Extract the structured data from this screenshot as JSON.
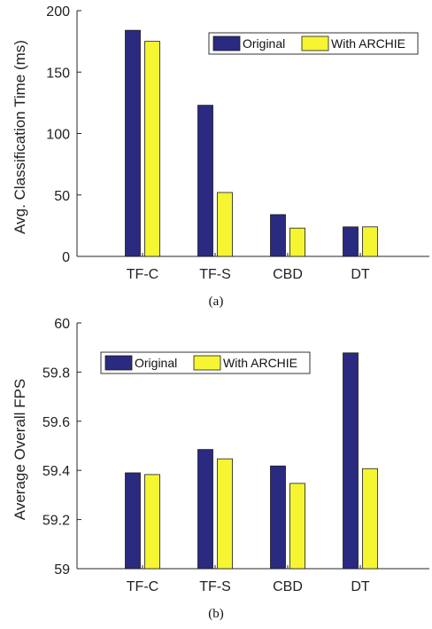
{
  "captions": [
    "(a)",
    "(b)"
  ],
  "colors": {
    "original": "#2a2a80",
    "archie": "#f5f532",
    "axis": "#262626"
  },
  "chart_data": [
    {
      "type": "bar",
      "ylabel": "Avg. Classification Time (ms)",
      "xlabel": "",
      "categories": [
        "TF-C",
        "TF-S",
        "CBD",
        "DT"
      ],
      "series": [
        {
          "name": "Original",
          "values": [
            184,
            123,
            34,
            24
          ]
        },
        {
          "name": "With ARCHIE",
          "values": [
            175,
            52,
            23,
            24
          ]
        }
      ],
      "ylim": [
        0,
        200
      ],
      "yticks": [
        0,
        50,
        100,
        150,
        200
      ],
      "legend_position": "top-right",
      "grid": false
    },
    {
      "type": "bar",
      "ylabel": "Average Overall FPS",
      "xlabel": "",
      "categories": [
        "TF-C",
        "TF-S",
        "CBD",
        "DT"
      ],
      "series": [
        {
          "name": "Original",
          "values": [
            59.39,
            59.485,
            59.418,
            59.878
          ]
        },
        {
          "name": "With ARCHIE",
          "values": [
            59.383,
            59.447,
            59.347,
            59.407
          ]
        }
      ],
      "ylim": [
        59,
        60
      ],
      "yticks": [
        59,
        59.2,
        59.4,
        59.6,
        59.8,
        60
      ],
      "legend_position": "top-left",
      "grid": false
    }
  ]
}
